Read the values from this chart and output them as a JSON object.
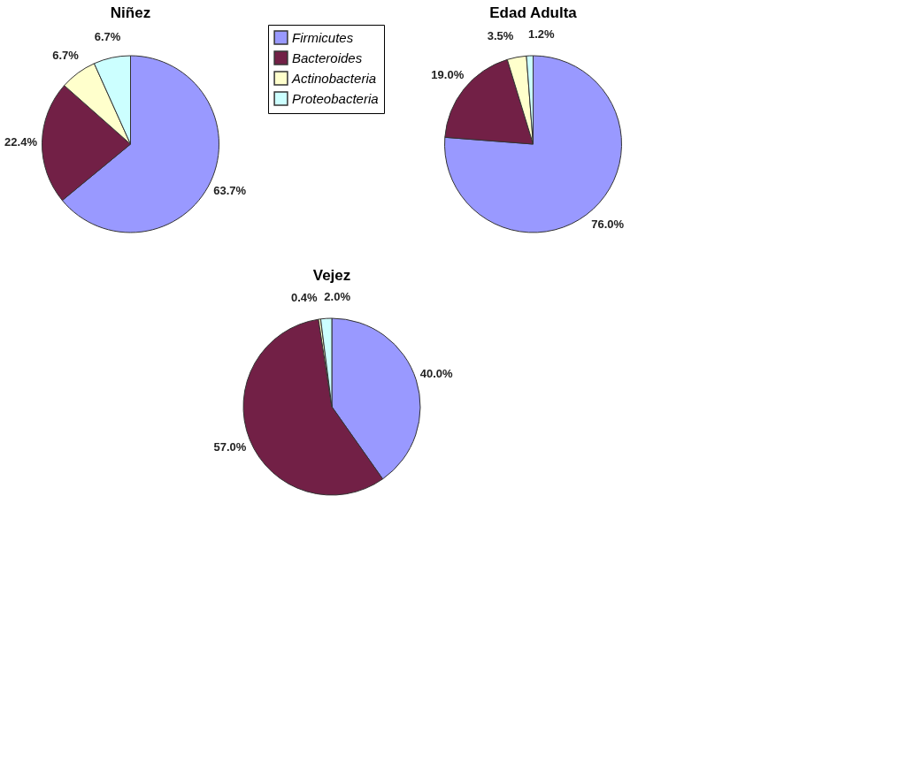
{
  "chart_data": [
    {
      "type": "pie",
      "title": "Niñez",
      "categories": [
        "Firmicutes",
        "Bacteroides",
        "Actinobacteria",
        "Proteobacteria"
      ],
      "values": [
        63.7,
        22.4,
        6.7,
        6.7
      ],
      "colors": [
        "#9999ff",
        "#722046",
        "#ffffcc",
        "#ccffff"
      ],
      "value_labels": [
        "63.7%",
        "22.4%",
        "6.7%",
        "6.7%"
      ],
      "legend": "right"
    },
    {
      "type": "pie",
      "title": "Edad Adulta",
      "values": [
        76.0,
        19.0,
        3.5,
        1.2
      ],
      "colors": [
        "#9999ff",
        "#722046",
        "#ffffcc",
        "#ccffff"
      ],
      "value_labels": [
        "76.0%",
        "19.0%",
        "3.5%",
        "1.2%"
      ]
    },
    {
      "type": "pie",
      "title": "Vejez",
      "values": [
        40.0,
        57.0,
        0.4,
        2.0
      ],
      "colors": [
        "#9999ff",
        "#722046",
        "#ffffcc",
        "#ccffff"
      ],
      "value_labels": [
        "40.0%",
        "57.0%",
        "0.4%",
        "2.0%"
      ]
    }
  ]
}
